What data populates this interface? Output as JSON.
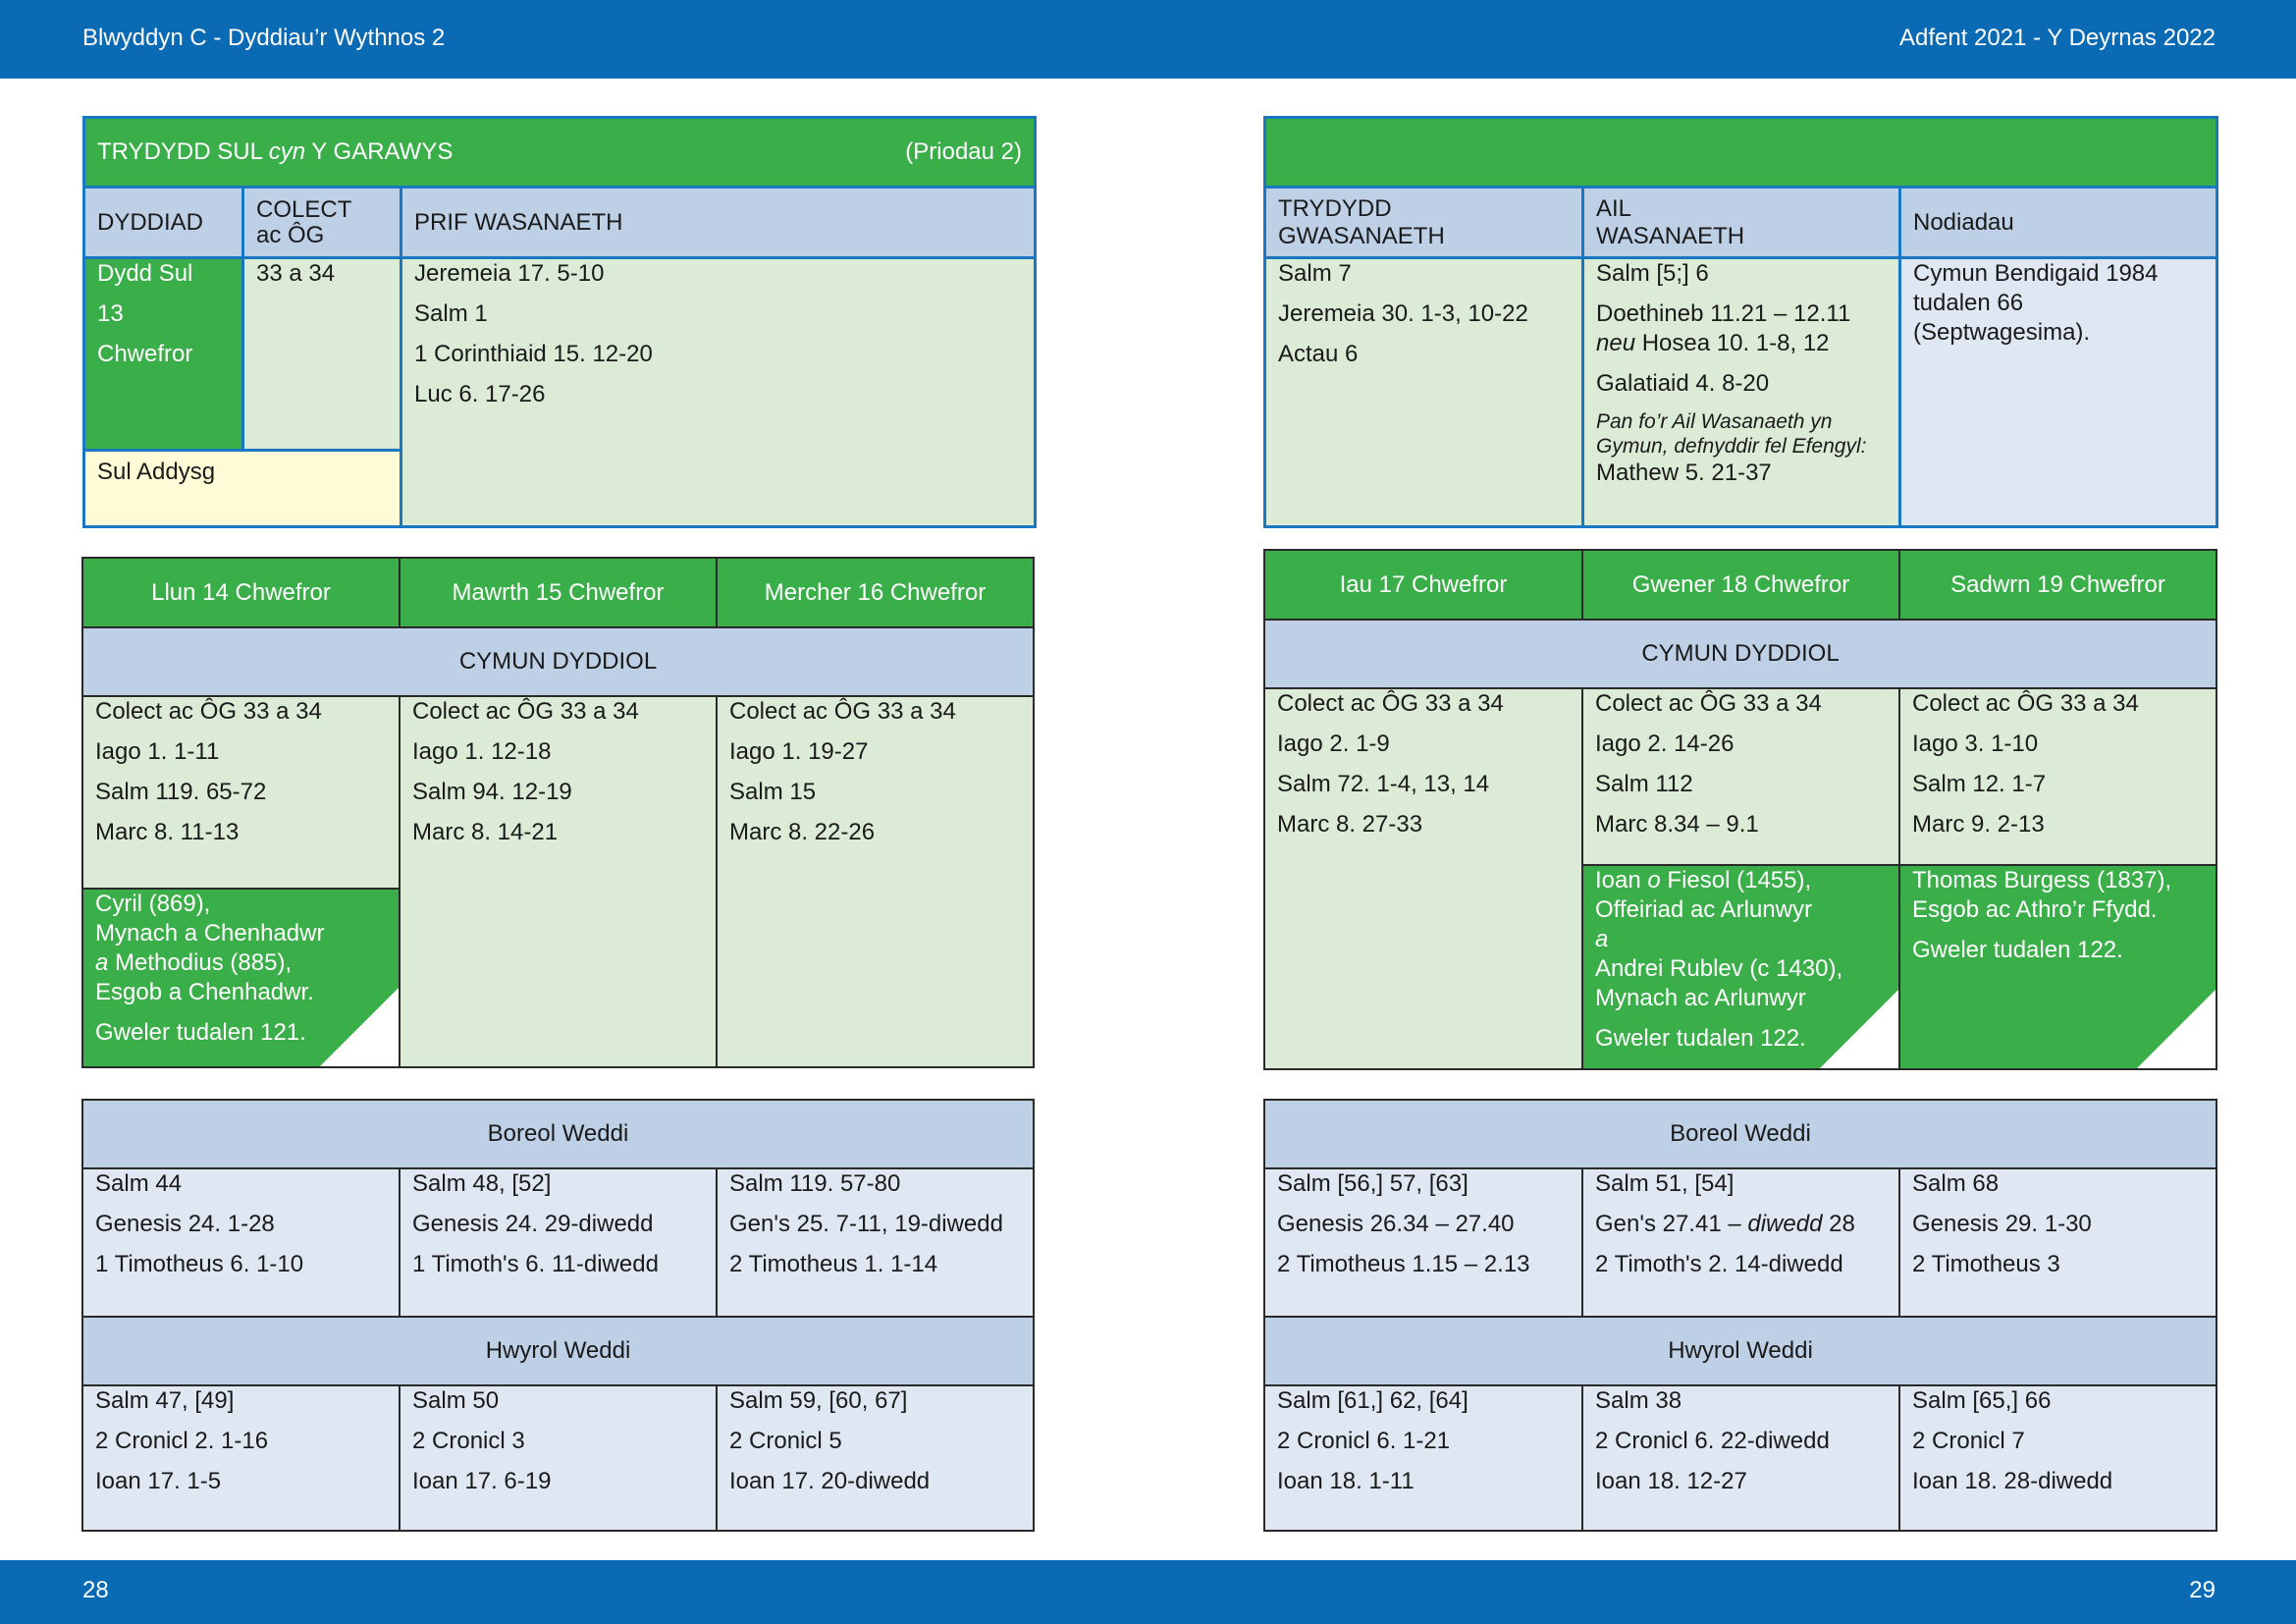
{
  "header": {
    "left": "Blwyddyn  C - Dyddiau’r Wythnos 2",
    "right": "Adfent 2021 - Y Deyrnas 2022"
  },
  "footer": {
    "page_left": "28",
    "page_right": "29"
  },
  "sunday": {
    "title_pre": "TRYDYDD SUL ",
    "title_em": "cyn",
    "title_post": " Y GARAWYS",
    "note": "(Priodau 2)",
    "col_date": "DYDDIAD",
    "col_colect_1": "COLECT",
    "col_colect_2": "ac ÔG",
    "col_main": "PRIF WASANAETH",
    "date_lines": [
      "Dydd Sul",
      "13",
      "Chwefror"
    ],
    "colect": "33 a 34",
    "main_readings": [
      "Jeremeia 17. 5-10",
      "Salm 1",
      "1 Corinthiaid 15. 12-20",
      "Luc 6. 17-26"
    ],
    "sul_addysg": "Sul Addysg",
    "col_third_1": "TRYDYDD",
    "col_third_2": "GWASANAETH",
    "col_second_1": "AIL",
    "col_second_2": "WASANAETH",
    "col_notes": "Nodiadau",
    "third_readings": [
      "Salm 7",
      "Jeremeia 30. 1-3, 10-22",
      "Actau 6"
    ],
    "second_1": "Salm [5;] 6",
    "second_2": "Doethineb 11.21 – 12.11",
    "second_3_em": "neu",
    "second_3": " Hosea 10. 1-8, 12",
    "second_4": "Galatiaid 4. 8-20",
    "second_note": "Pan fo’r Ail Wasanaeth yn Gymun, defnyddir fel Efengyl:",
    "second_5": "Mathew 5. 21-37",
    "notes_text": "Cymun Bendigaid 1984 tudalen 66 (Septwagesima)."
  },
  "week_left": {
    "days": [
      "Llun 14 Chwefror",
      "Mawrth 15 Chwefror",
      "Mercher 16 Chwefror"
    ],
    "cymun": "CYMUN DYDDIOL",
    "readings": [
      [
        "Colect ac ÔG 33 a 34",
        "Iago 1. 1-11",
        "Salm 119. 65-72",
        "Marc 8. 11-13"
      ],
      [
        "Colect ac ÔG 33 a 34",
        "Iago 1. 12-18",
        "Salm 94. 12-19",
        "Marc 8. 14-21"
      ],
      [
        "Colect ac ÔG 33 a 34",
        "Iago 1. 19-27",
        "Salm 15",
        "Marc 8. 22-26"
      ]
    ],
    "commem": {
      "l1": "Cyril (869),",
      "l2": "Mynach a Chenhadwr",
      "l3_em": "a",
      "l3": " Methodius (885),",
      "l4": "Esgob a Chenhadwr.",
      "see": "Gweler tudalen 121."
    },
    "morning_title": "Boreol Weddi",
    "morning": [
      [
        "Salm 44",
        "Genesis 24. 1-28",
        "1 Timotheus 6. 1-10"
      ],
      [
        "Salm 48, [52]",
        "Genesis 24. 29-diwedd",
        "1 Timoth's 6. 11-diwedd"
      ],
      [
        "Salm 119. 57-80",
        "Gen's 25. 7-11, 19-diwedd",
        "2 Timotheus 1. 1-14"
      ]
    ],
    "evening_title": "Hwyrol Weddi",
    "evening": [
      [
        "Salm 47, [49]",
        "2 Cronicl 2. 1-16",
        "Ioan 17. 1-5"
      ],
      [
        "Salm 50",
        "2 Cronicl 3",
        "Ioan 17. 6-19"
      ],
      [
        "Salm 59, [60, 67]",
        "2 Cronicl 5",
        "Ioan 17. 20-diwedd"
      ]
    ]
  },
  "week_right": {
    "days": [
      "Iau 17 Chwefror",
      "Gwener 18 Chwefror",
      "Sadwrn 19 Chwefror"
    ],
    "cymun": "CYMUN DYDDIOL",
    "readings": [
      [
        "Colect ac ÔG 33 a 34",
        "Iago 2. 1-9",
        "Salm 72. 1-4, 13, 14",
        "Marc 8. 27-33"
      ],
      [
        "Colect ac ÔG 33 a 34",
        "Iago 2. 14-26",
        "Salm 112",
        "Marc 8.34 – 9.1"
      ],
      [
        "Colect ac ÔG 33 a 34",
        "Iago 3. 1-10",
        "Salm 12. 1-7",
        "Marc 9. 2-13"
      ]
    ],
    "commem_fri": {
      "l1_a": "Ioan ",
      "l1_em": "o",
      "l1_b": " Fiesol (1455),",
      "l2": "Offeiriad ac Arlunwyr",
      "l3_em": "a",
      "l4": "Andrei Rublev (c 1430),",
      "l5": "Mynach ac Arlunwyr",
      "see": "Gweler tudalen 122."
    },
    "commem_sat": {
      "l1": "Thomas Burgess (1837),",
      "l2": "Esgob ac Athro’r Ffydd.",
      "see": "Gweler tudalen 122."
    },
    "morning_title": "Boreol Weddi",
    "morning": [
      [
        "Salm [56,] 57, [63]",
        "Genesis 26.34 – 27.40",
        "2 Timotheus 1.15 – 2.13"
      ],
      [
        "Salm 51, [54]",
        "Gen's 27.41 – ",
        "2 Timoth's 2. 14-diwedd"
      ],
      [
        "Salm 68",
        "Genesis 29. 1-30",
        "2 Timotheus 3"
      ]
    ],
    "morning_mid_em": "diwedd",
    "morning_mid_tail": " 28",
    "evening_title": "Hwyrol Weddi",
    "evening": [
      [
        "Salm [61,] 62, [64]",
        "2 Cronicl 6. 1-21",
        "Ioan 18. 1-11"
      ],
      [
        "Salm 38",
        "2 Cronicl 6. 22-diwedd",
        "Ioan 18. 12-27"
      ],
      [
        "Salm [65,] 66",
        "2 Cronicl 7",
        "Ioan 18. 28-diwedd"
      ]
    ]
  },
  "colors": {
    "brand_blue": "#0a6ab4",
    "green": "#3aae49",
    "light_green": "#dcebd6",
    "light_blue": "#dfe7f2",
    "header_blue": "#bed0e6",
    "cream": "#fffbd6"
  }
}
